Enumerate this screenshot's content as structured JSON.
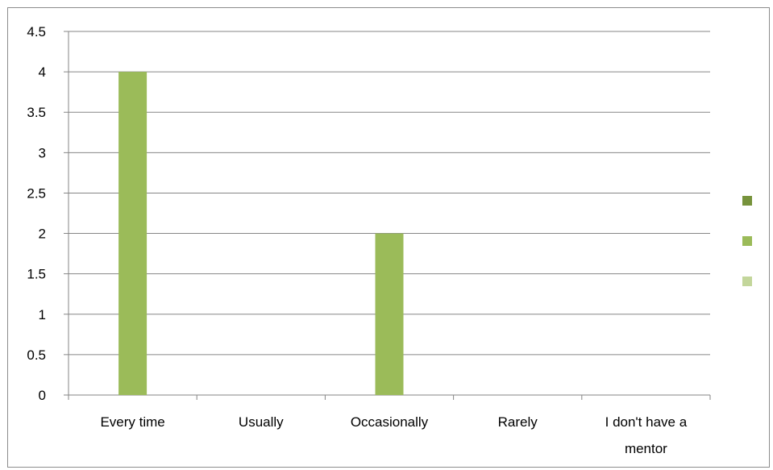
{
  "chart_data": {
    "type": "bar",
    "categories": [
      [
        "Every time"
      ],
      [
        "Usually"
      ],
      [
        "Occasionally"
      ],
      [
        "Rarely"
      ],
      [
        "I don't have a",
        "mentor"
      ]
    ],
    "series": [
      {
        "values": [
          0,
          0,
          0,
          0,
          0
        ],
        "color": "#77933c"
      },
      {
        "values": [
          4,
          0,
          2,
          0,
          0
        ],
        "color": "#9bbb59"
      },
      {
        "values": [
          0,
          0,
          0,
          0,
          0
        ],
        "color": "#c3d69b"
      }
    ],
    "ylim": [
      0,
      4.5
    ],
    "yticks": [
      "0",
      "0.5",
      "1",
      "1.5",
      "2",
      "2.5",
      "3",
      "3.5",
      "4",
      "4.5"
    ],
    "grid": true,
    "legend": "right",
    "colors": {
      "gridline": "#868686",
      "axis": "#868686"
    }
  }
}
